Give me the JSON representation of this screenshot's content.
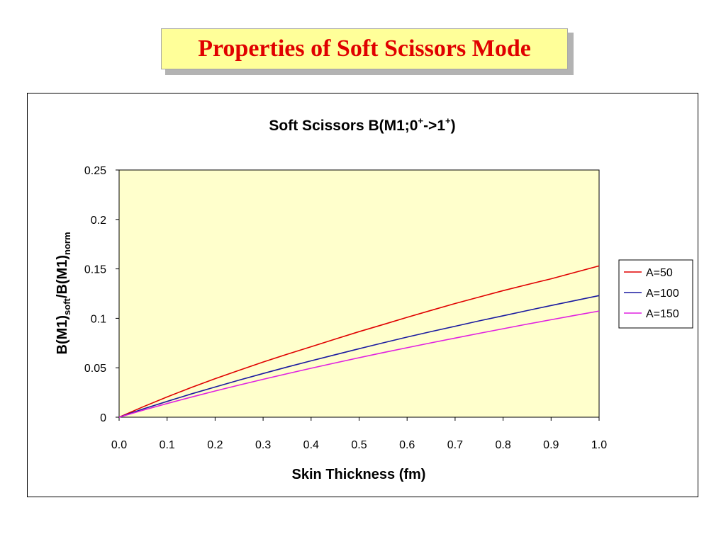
{
  "slide": {
    "title": "Properties of Soft Scissors Mode"
  },
  "chart_data": {
    "type": "line",
    "title": {
      "main": "Soft Scissors B(M1;0",
      "sup1": "+",
      "mid": "->1",
      "sup2": "+",
      "end": ")"
    },
    "xlabel": "Skin Thickness (fm)",
    "ylabel": {
      "a": "B(M1)",
      "a_sub": "soft",
      "b": "/B(M1)",
      "b_sub": "norm"
    },
    "xlim": [
      0.0,
      1.0
    ],
    "ylim": [
      0,
      0.25
    ],
    "x_ticks": [
      "0.0",
      "0.1",
      "0.2",
      "0.3",
      "0.4",
      "0.5",
      "0.6",
      "0.7",
      "0.8",
      "0.9",
      "1.0"
    ],
    "y_ticks": [
      "0",
      "0.05",
      "0.1",
      "0.15",
      "0.2",
      "0.25"
    ],
    "grid": false,
    "plot_background": "#ffffcc",
    "legend_position": "right",
    "x": [
      0.0,
      0.05,
      0.1,
      0.15,
      0.2,
      0.25,
      0.3,
      0.35,
      0.4,
      0.45,
      0.5,
      0.55,
      0.6,
      0.65,
      0.7,
      0.75,
      0.8,
      0.85,
      0.9,
      0.95,
      1.0
    ],
    "series": [
      {
        "name": "A=50",
        "color": "#e00000",
        "values": [
          0.0,
          0.0105,
          0.0205,
          0.03,
          0.039,
          0.0475,
          0.0558,
          0.0637,
          0.0713,
          0.079,
          0.0865,
          0.0937,
          0.101,
          0.108,
          0.115,
          0.1215,
          0.128,
          0.134,
          0.14,
          0.1465,
          0.153
        ]
      },
      {
        "name": "A=100",
        "color": "#1a1aa0",
        "values": [
          0.0,
          0.0083,
          0.016,
          0.0235,
          0.0305,
          0.0375,
          0.0442,
          0.0507,
          0.057,
          0.0632,
          0.0693,
          0.0752,
          0.081,
          0.0866,
          0.092,
          0.0974,
          0.1026,
          0.1078,
          0.113,
          0.118,
          0.123
        ]
      },
      {
        "name": "A=150",
        "color": "#e020e0",
        "values": [
          0.0,
          0.0071,
          0.0138,
          0.0203,
          0.0265,
          0.0325,
          0.0383,
          0.044,
          0.0495,
          0.0549,
          0.0602,
          0.0653,
          0.0703,
          0.0752,
          0.08,
          0.0848,
          0.0895,
          0.0941,
          0.0986,
          0.103,
          0.1074
        ]
      }
    ]
  }
}
